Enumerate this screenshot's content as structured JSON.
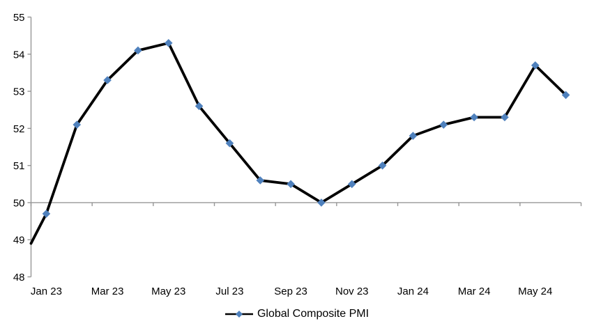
{
  "chart_data": {
    "type": "line",
    "title": "",
    "series": [
      {
        "name": "Global Composite PMI",
        "categories": [
          "Jan 23",
          "Feb 23",
          "Mar 23",
          "Apr 23",
          "May 23",
          "Jun 23",
          "Jul 23",
          "Aug 23",
          "Sep 23",
          "Oct 23",
          "Nov 23",
          "Dec 23",
          "Jan 24",
          "Feb 24",
          "Mar 24",
          "Apr 24",
          "May 24",
          "Jun 24"
        ],
        "values": [
          49.7,
          52.1,
          53.3,
          54.1,
          54.3,
          52.6,
          51.6,
          50.6,
          50.5,
          50.0,
          50.5,
          51.0,
          51.8,
          52.1,
          52.3,
          52.3,
          53.7,
          52.9
        ],
        "lead_in_value_at_left_axis": 48.9
      }
    ],
    "x_axis": {
      "shown_labels": [
        "Jan 23",
        "Mar 23",
        "May 23",
        "Jul 23",
        "Sep 23",
        "Nov 23",
        "Jan 24",
        "Mar 24",
        "May 24"
      ],
      "label_every_n_categories": 2,
      "crosses_at_y": 50,
      "tick_every_n_categories": 2
    },
    "y_axis": {
      "min": 48,
      "max": 55,
      "tick_interval": 1,
      "ticks": [
        55,
        54,
        53,
        52,
        51,
        50,
        49,
        48
      ]
    },
    "legend": {
      "label": "Global Composite PMI",
      "position": "bottom-center",
      "marker": "line-with-diamond"
    },
    "grid": "off",
    "styles": {
      "line_color": "#000000",
      "marker_shape": "diamond",
      "marker_color": "#4F81BD",
      "axis_color": "#969696",
      "text_color": "#000000",
      "background_color": "#FFFFFF"
    }
  }
}
